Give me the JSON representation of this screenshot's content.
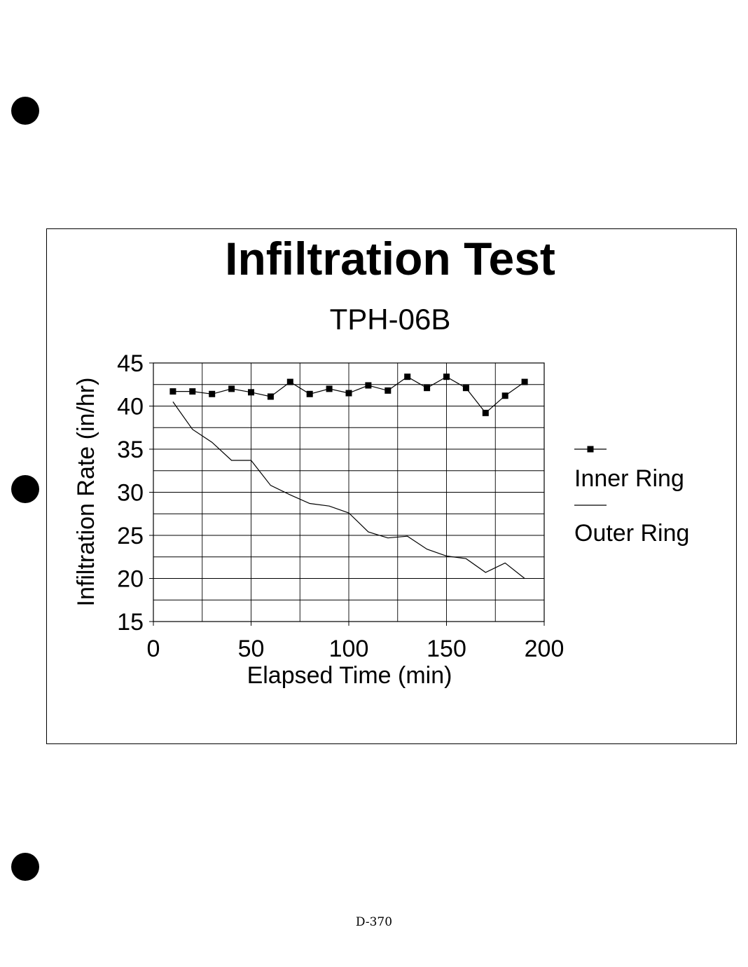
{
  "page": {
    "footer": "D-370"
  },
  "chart_data": {
    "type": "line",
    "title": "Infiltration Test",
    "subtitle": "TPH-06B",
    "xlabel": "Elapsed Time (min)",
    "ylabel": "Infiltration Rate (in/hr)",
    "xlim": [
      0,
      200
    ],
    "ylim": [
      15,
      45
    ],
    "xticks": [
      0,
      50,
      100,
      150,
      200
    ],
    "yticks": [
      15,
      20,
      25,
      30,
      35,
      40,
      45
    ],
    "grid": true,
    "legend": "right",
    "series": [
      {
        "name": "Inner Ring",
        "marker": "square",
        "color": "#000000",
        "x": [
          10,
          20,
          30,
          40,
          50,
          60,
          70,
          80,
          90,
          100,
          110,
          120,
          130,
          140,
          150,
          160,
          170,
          180,
          190
        ],
        "values": [
          41.7,
          41.7,
          41.4,
          42.0,
          41.6,
          41.1,
          42.8,
          41.4,
          42.0,
          41.5,
          42.4,
          41.8,
          43.4,
          42.1,
          43.4,
          42.1,
          39.2,
          41.2,
          42.8
        ]
      },
      {
        "name": "Outer Ring",
        "marker": "none",
        "color": "#000000",
        "x": [
          10,
          20,
          30,
          40,
          50,
          60,
          70,
          80,
          90,
          100,
          110,
          120,
          130,
          140,
          150,
          160,
          170,
          180,
          190
        ],
        "values": [
          40.5,
          37.3,
          35.8,
          33.7,
          33.7,
          30.8,
          29.7,
          28.7,
          28.4,
          27.6,
          25.4,
          24.7,
          24.9,
          23.4,
          22.6,
          22.3,
          20.7,
          21.8,
          20.0
        ]
      }
    ]
  }
}
